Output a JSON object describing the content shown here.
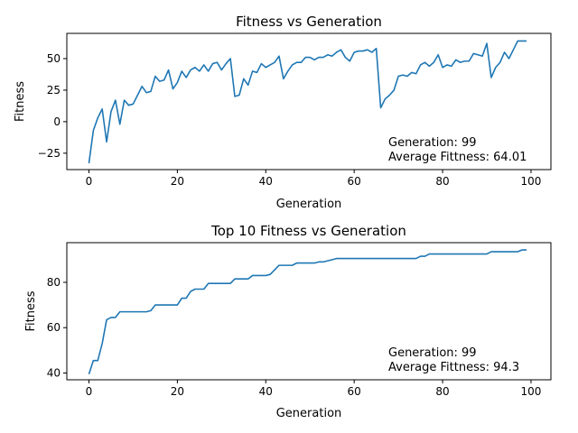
{
  "chart_data": [
    {
      "type": "line",
      "title": "Fitness vs Generation",
      "xlabel": "Generation",
      "ylabel": "Fitness",
      "xlim": [
        -5,
        104.5
      ],
      "ylim": [
        -38,
        70
      ],
      "xticks": [
        0,
        20,
        40,
        60,
        80,
        100
      ],
      "yticks": [
        -25,
        0,
        25,
        50
      ],
      "annotation": [
        "Generation: 99",
        "Average Fittness: 64.01"
      ],
      "series": [
        {
          "color": "#1f77b4",
          "x": [
            0,
            1,
            2,
            3,
            4,
            5,
            6,
            7,
            8,
            9,
            10,
            11,
            12,
            13,
            14,
            15,
            16,
            17,
            18,
            19,
            20,
            21,
            22,
            23,
            24,
            25,
            26,
            27,
            28,
            29,
            30,
            31,
            32,
            33,
            34,
            35,
            36,
            37,
            38,
            39,
            40,
            41,
            42,
            43,
            44,
            45,
            46,
            47,
            48,
            49,
            50,
            51,
            52,
            53,
            54,
            55,
            56,
            57,
            58,
            59,
            60,
            61,
            62,
            63,
            64,
            65,
            66,
            67,
            68,
            69,
            70,
            71,
            72,
            73,
            74,
            75,
            76,
            77,
            78,
            79,
            80,
            81,
            82,
            83,
            84,
            85,
            86,
            87,
            88,
            89,
            90,
            91,
            92,
            93,
            94,
            95,
            96,
            97,
            98,
            99
          ],
          "y": [
            -33,
            -7,
            3,
            10,
            -16,
            8,
            17,
            -2,
            17,
            13,
            14,
            21,
            28,
            23,
            24,
            36,
            32,
            33,
            41,
            26,
            31,
            40,
            35,
            41,
            43,
            40,
            45,
            40,
            46,
            47,
            41,
            46,
            50,
            20,
            21,
            34,
            29,
            40,
            39,
            46,
            43,
            45,
            47,
            52,
            34,
            40,
            45,
            47,
            47,
            51,
            51,
            49,
            51,
            51,
            53,
            52,
            55,
            57,
            51,
            48,
            55,
            56,
            56,
            57,
            55,
            58,
            11,
            18,
            21,
            25,
            36,
            37,
            36,
            39,
            38,
            45,
            47,
            44,
            47,
            53,
            43,
            45,
            44,
            49,
            47,
            48,
            48,
            54,
            53,
            52,
            62,
            35,
            43,
            47,
            55,
            50,
            57,
            64,
            64,
            64
          ]
        }
      ]
    },
    {
      "type": "line",
      "title": "Top 10 Fitness vs Generation",
      "xlabel": "Generation",
      "ylabel": "Fitness",
      "xlim": [
        -5,
        104.5
      ],
      "ylim": [
        37,
        97.5
      ],
      "xticks": [
        0,
        20,
        40,
        60,
        80,
        100
      ],
      "yticks": [
        40,
        60,
        80
      ],
      "annotation": [
        "Generation: 99",
        "Average Fittness: 94.3"
      ],
      "series": [
        {
          "color": "#1f77b4",
          "x": [
            0,
            1,
            2,
            3,
            4,
            5,
            6,
            7,
            8,
            9,
            10,
            11,
            12,
            13,
            14,
            15,
            16,
            17,
            18,
            19,
            20,
            21,
            22,
            23,
            24,
            25,
            26,
            27,
            28,
            29,
            30,
            31,
            32,
            33,
            34,
            35,
            36,
            37,
            38,
            39,
            40,
            41,
            42,
            43,
            44,
            45,
            46,
            47,
            48,
            49,
            50,
            51,
            52,
            53,
            54,
            55,
            56,
            57,
            58,
            59,
            60,
            61,
            62,
            63,
            64,
            65,
            66,
            67,
            68,
            69,
            70,
            71,
            72,
            73,
            74,
            75,
            76,
            77,
            78,
            79,
            80,
            81,
            82,
            83,
            84,
            85,
            86,
            87,
            88,
            89,
            90,
            91,
            92,
            93,
            94,
            95,
            96,
            97,
            98,
            99
          ],
          "y": [
            39.5,
            45.5,
            45.5,
            53,
            63.5,
            64.5,
            64.5,
            67,
            67,
            67,
            67,
            67,
            67,
            67,
            67.5,
            70,
            70,
            70,
            70,
            70,
            70,
            73,
            73,
            76,
            77,
            77,
            77,
            79.5,
            79.5,
            79.5,
            79.5,
            79.5,
            79.5,
            81.5,
            81.5,
            81.5,
            81.5,
            83,
            83,
            83,
            83,
            83.5,
            85.5,
            87.5,
            87.5,
            87.5,
            87.5,
            88.5,
            88.5,
            88.5,
            88.5,
            88.5,
            89,
            89,
            89.5,
            90,
            90.5,
            90.5,
            90.5,
            90.5,
            90.5,
            90.5,
            90.5,
            90.5,
            90.5,
            90.5,
            90.5,
            90.5,
            90.5,
            90.5,
            90.5,
            90.5,
            90.5,
            90.5,
            90.5,
            91.5,
            91.5,
            92.5,
            92.5,
            92.5,
            92.5,
            92.5,
            92.5,
            92.5,
            92.5,
            92.5,
            92.5,
            92.5,
            92.5,
            92.5,
            92.5,
            93.5,
            93.5,
            93.5,
            93.5,
            93.5,
            93.5,
            93.5,
            94.3,
            94.3
          ]
        }
      ]
    }
  ]
}
